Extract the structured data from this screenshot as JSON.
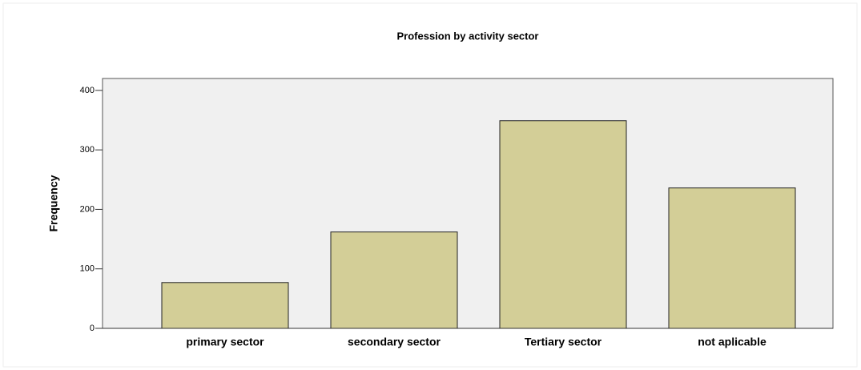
{
  "chart_data": {
    "type": "bar",
    "title": "Profession by activity sector",
    "y_label": "Frequency",
    "categories": [
      "primary sector",
      "secondary sector",
      "Tertiary sector",
      "not aplicable"
    ],
    "values": [
      77,
      162,
      349,
      236
    ],
    "color": "#d3ce97",
    "ylim": [
      0,
      420
    ],
    "yticks": [
      0,
      100,
      200,
      300,
      400
    ],
    "grid": false
  }
}
